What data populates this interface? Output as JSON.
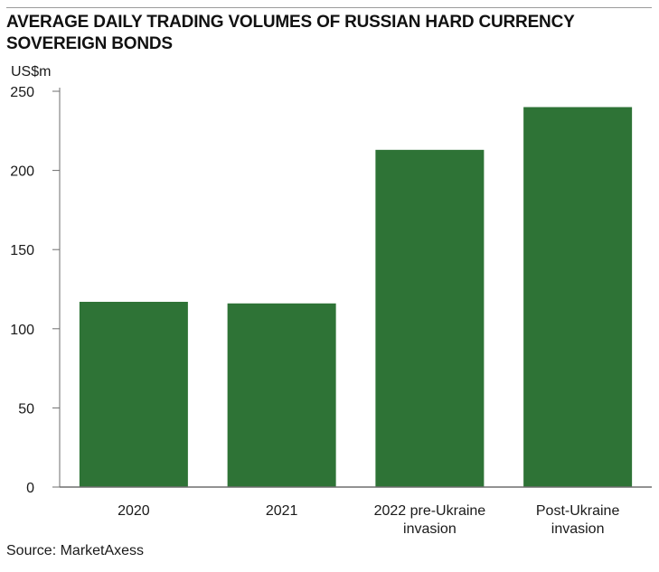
{
  "chart_data": {
    "type": "bar",
    "title": "AVERAGE DAILY TRADING VOLUMES OF RUSSIAN HARD CURRENCY SOVEREIGN BONDS",
    "ylabel": "US$m",
    "xlabel": "",
    "categories": [
      "2020",
      "2021",
      "2022 pre-Ukraine invasion",
      "Post-Ukraine invasion"
    ],
    "category_lines": [
      [
        "2020"
      ],
      [
        "2021"
      ],
      [
        "2022 pre-Ukraine",
        "invasion"
      ],
      [
        "Post-Ukraine",
        "invasion"
      ]
    ],
    "values": [
      117,
      116,
      213,
      240
    ],
    "ylim": [
      0,
      250
    ],
    "yticks": [
      0,
      50,
      100,
      150,
      200,
      250
    ],
    "grid": false,
    "legend": "none",
    "bar_color": "#2e7336",
    "source": "Source: MarketAxess"
  }
}
